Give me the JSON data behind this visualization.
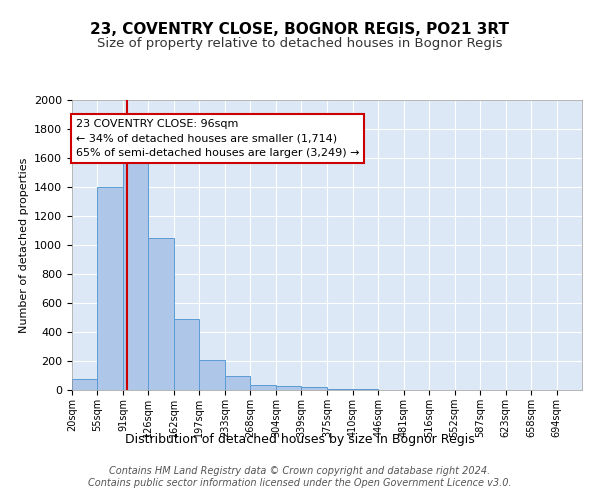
{
  "title": "23, COVENTRY CLOSE, BOGNOR REGIS, PO21 3RT",
  "subtitle": "Size of property relative to detached houses in Bognor Regis",
  "xlabel": "Distribution of detached houses by size in Bognor Regis",
  "ylabel": "Number of detached properties",
  "bar_edges": [
    20,
    55,
    91,
    126,
    162,
    197,
    233,
    268,
    304,
    339,
    375,
    410,
    446,
    481,
    516,
    552,
    587,
    623,
    658,
    694,
    729
  ],
  "bar_values": [
    75,
    1400,
    1614,
    1050,
    490,
    205,
    100,
    35,
    25,
    20,
    10,
    5,
    3,
    2,
    1,
    1,
    0,
    0,
    0,
    0
  ],
  "bar_color": "#aec6e8",
  "bar_edge_color": "#5b9bd5",
  "property_size": 96,
  "red_line_color": "#cc0000",
  "annotation_text": "23 COVENTRY CLOSE: 96sqm\n← 34% of detached houses are smaller (1,714)\n65% of semi-detached houses are larger (3,249) →",
  "annotation_box_color": "#ffffff",
  "annotation_box_edge": "#cc0000",
  "ylim": [
    0,
    2000
  ],
  "yticks": [
    0,
    200,
    400,
    600,
    800,
    1000,
    1200,
    1400,
    1600,
    1800,
    2000
  ],
  "footer": "Contains HM Land Registry data © Crown copyright and database right 2024.\nContains public sector information licensed under the Open Government Licence v3.0.",
  "plot_background": "#dce8f5",
  "title_fontsize": 11,
  "subtitle_fontsize": 9.5,
  "footer_fontsize": 7,
  "annotation_fontsize": 8
}
